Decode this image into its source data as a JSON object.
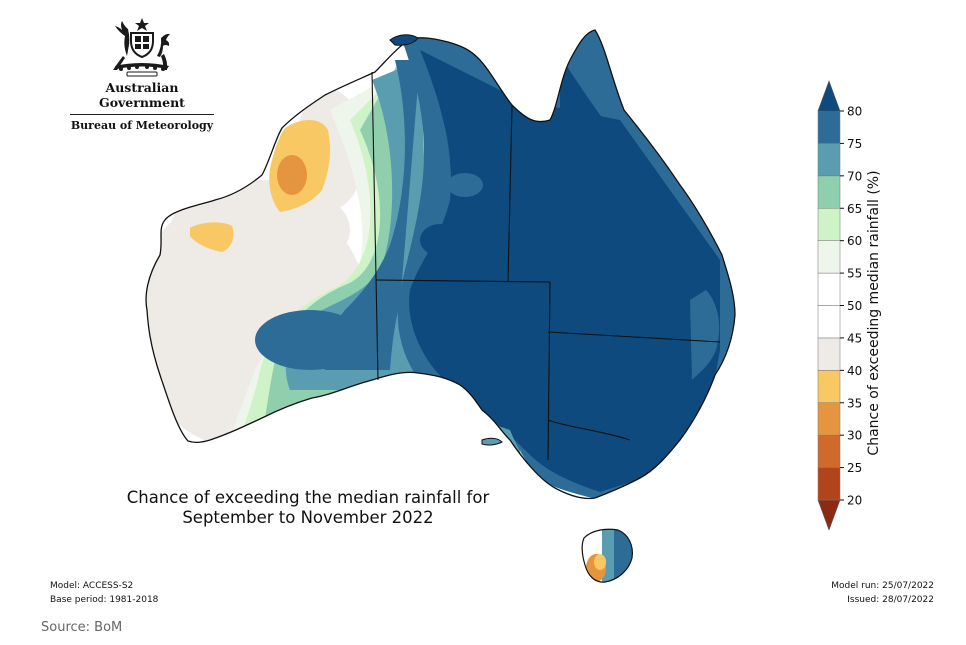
{
  "logo": {
    "government": "Australian Government",
    "bureau": "Bureau of Meteorology"
  },
  "map": {
    "title_line1": "Chance of exceeding the median rainfall for",
    "title_line2": "September to November 2022"
  },
  "footer": {
    "model": "Model: ACCESS-S2",
    "base_period": "Base period: 1981-2018",
    "model_run": "Model run: 25/07/2022",
    "issued": "Issued: 28/07/2022"
  },
  "colorbar": {
    "label": "Chance of exceeding median rainfall (%)",
    "ticks": [
      "20",
      "25",
      "30",
      "35",
      "40",
      "45",
      "50",
      "55",
      "60",
      "65",
      "70",
      "75",
      "80"
    ],
    "bins": [
      {
        "range": "<20",
        "color": "#8c2a12"
      },
      {
        "range": "20-25",
        "color": "#b2441d"
      },
      {
        "range": "25-30",
        "color": "#cf6a2c"
      },
      {
        "range": "30-35",
        "color": "#e59540"
      },
      {
        "range": "35-40",
        "color": "#f8c864"
      },
      {
        "range": "40-45",
        "color": "#eeeae6"
      },
      {
        "range": "45-50",
        "color": "#ffffff"
      },
      {
        "range": "50-55",
        "color": "#ffffff"
      },
      {
        "range": "55-60",
        "color": "#eef6ec"
      },
      {
        "range": "60-65",
        "color": "#cef3c6"
      },
      {
        "range": "65-70",
        "color": "#8fcfae"
      },
      {
        "range": "70-75",
        "color": "#5b9db0"
      },
      {
        "range": "75-80",
        "color": "#2e6c98"
      },
      {
        "range": ">80",
        "color": "#0e4a7e"
      }
    ]
  },
  "source": "Source: BoM"
}
